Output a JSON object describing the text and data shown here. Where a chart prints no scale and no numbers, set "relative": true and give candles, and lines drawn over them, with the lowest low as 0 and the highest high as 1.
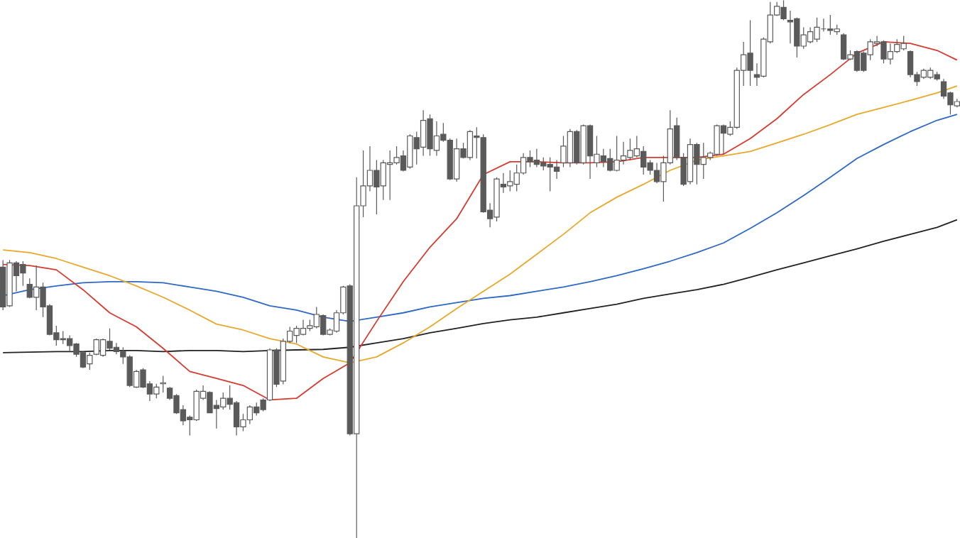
{
  "chart_data": {
    "type": "candlestick",
    "relative": true,
    "color": "#5a5a5a",
    "categories": [
      null,
      null,
      null,
      null,
      null,
      null,
      null,
      null,
      null,
      null,
      null,
      null,
      null,
      null,
      null,
      null,
      null,
      null,
      null,
      null,
      null,
      null,
      null,
      null,
      null,
      null,
      null,
      null,
      null,
      null,
      null,
      null,
      null,
      null,
      null,
      null,
      null,
      null,
      null,
      null,
      null,
      null,
      null,
      null,
      null,
      null,
      null,
      null,
      null,
      null,
      null,
      null,
      null,
      null,
      null,
      null,
      null,
      null,
      null,
      null,
      null,
      null,
      null,
      null,
      null,
      null,
      null,
      null,
      null,
      null,
      null,
      null,
      null,
      null,
      null,
      null,
      null,
      null,
      null,
      null,
      null,
      null,
      null,
      null,
      null,
      null,
      null,
      null,
      null,
      null,
      null,
      null,
      null,
      null,
      null,
      null,
      null,
      null,
      null,
      null,
      null,
      null,
      null,
      null,
      null,
      null,
      null,
      null,
      null,
      null,
      null,
      null,
      null,
      null,
      null,
      null,
      null,
      null,
      null,
      null,
      null,
      null,
      null,
      null,
      null,
      null,
      null,
      null,
      null,
      null,
      null,
      null,
      null,
      null,
      null,
      null,
      null,
      null,
      null,
      null,
      null,
      null,
      null,
      null
    ],
    "ohlc": [
      [
        0.504,
        0.517,
        0.424,
        0.43
      ],
      [
        0.432,
        0.517,
        0.43,
        0.512
      ],
      [
        0.512,
        0.515,
        0.459,
        0.488
      ],
      [
        0.509,
        0.515,
        0.469,
        0.493
      ],
      [
        0.472,
        0.483,
        0.446,
        0.448
      ],
      [
        0.448,
        0.507,
        0.424,
        0.467
      ],
      [
        0.467,
        0.475,
        0.411,
        0.43
      ],
      [
        0.432,
        0.435,
        0.377,
        0.379
      ],
      [
        0.382,
        0.395,
        0.358,
        0.369
      ],
      [
        0.371,
        0.385,
        0.361,
        0.369
      ],
      [
        0.371,
        0.377,
        0.347,
        0.358
      ],
      [
        0.361,
        0.363,
        0.337,
        0.342
      ],
      [
        0.345,
        0.347,
        0.316,
        0.318
      ],
      [
        0.324,
        0.345,
        0.313,
        0.34
      ],
      [
        0.342,
        0.371,
        0.34,
        0.369
      ],
      [
        0.34,
        0.371,
        0.337,
        0.369
      ],
      [
        0.366,
        0.39,
        0.35,
        0.353
      ],
      [
        0.355,
        0.363,
        0.342,
        0.347
      ],
      [
        0.347,
        0.355,
        0.324,
        0.337
      ],
      [
        0.337,
        0.34,
        0.281,
        0.284
      ],
      [
        0.281,
        0.313,
        0.279,
        0.31
      ],
      [
        0.313,
        0.316,
        0.279,
        0.281
      ],
      [
        0.287,
        0.292,
        0.255,
        0.268
      ],
      [
        0.268,
        0.287,
        0.26,
        0.281
      ],
      [
        0.287,
        0.302,
        0.271,
        0.289
      ],
      [
        0.279,
        0.281,
        0.257,
        0.26
      ],
      [
        0.265,
        0.268,
        0.231,
        0.233
      ],
      [
        0.239,
        0.247,
        0.21,
        0.218
      ],
      [
        0.225,
        0.228,
        0.191,
        0.22
      ],
      [
        0.22,
        0.276,
        0.218,
        0.273
      ],
      [
        0.26,
        0.284,
        0.257,
        0.273
      ],
      [
        0.271,
        0.273,
        0.233,
        0.233
      ],
      [
        0.247,
        0.257,
        0.204,
        0.241
      ],
      [
        0.244,
        0.271,
        0.239,
        0.26
      ],
      [
        0.26,
        0.284,
        0.239,
        0.249
      ],
      [
        0.252,
        0.255,
        0.191,
        0.207
      ],
      [
        0.207,
        0.231,
        0.199,
        0.22
      ],
      [
        0.22,
        0.247,
        0.212,
        0.244
      ],
      [
        0.244,
        0.252,
        0.228,
        0.233
      ],
      [
        0.257,
        0.26,
        0.236,
        0.239
      ],
      [
        0.257,
        0.353,
        0.255,
        0.35
      ],
      [
        0.35,
        0.353,
        0.281,
        0.286
      ],
      [
        0.292,
        0.371,
        0.286,
        0.366
      ],
      [
        0.366,
        0.393,
        0.363,
        0.385
      ],
      [
        0.377,
        0.395,
        0.363,
        0.39
      ],
      [
        0.379,
        0.406,
        0.377,
        0.39
      ],
      [
        0.39,
        0.406,
        0.385,
        0.395
      ],
      [
        0.393,
        0.43,
        0.39,
        0.416
      ],
      [
        0.414,
        0.416,
        0.377,
        0.379
      ],
      [
        0.379,
        0.39,
        0.377,
        0.387
      ],
      [
        0.385,
        0.424,
        0.382,
        0.419
      ],
      [
        0.419,
        0.469,
        0.416,
        0.467
      ],
      [
        0.469,
        0.472,
        0.191,
        0.194
      ],
      [
        0.194,
        0.671,
        0,
        0.618
      ],
      [
        0.618,
        0.721,
        0.597,
        0.655
      ],
      [
        0.655,
        0.729,
        0.645,
        0.684
      ],
      [
        0.684,
        0.703,
        0.602,
        0.653
      ],
      [
        0.655,
        0.703,
        0.629,
        0.698
      ],
      [
        0.695,
        0.721,
        0.629,
        0.698
      ],
      [
        0.698,
        0.729,
        0.695,
        0.708
      ],
      [
        0.711,
        0.721,
        0.682,
        0.684
      ],
      [
        0.69,
        0.751,
        0.687,
        0.748
      ],
      [
        0.745,
        0.756,
        0.695,
        0.724
      ],
      [
        0.727,
        0.796,
        0.711,
        0.777
      ],
      [
        0.78,
        0.788,
        0.711,
        0.724
      ],
      [
        0.721,
        0.775,
        0.711,
        0.748
      ],
      [
        0.751,
        0.772,
        0.737,
        0.74
      ],
      [
        0.74,
        0.743,
        0.666,
        0.668
      ],
      [
        0.668,
        0.743,
        0.663,
        0.724
      ],
      [
        0.724,
        0.735,
        0.706,
        0.708
      ],
      [
        0.708,
        0.759,
        0.703,
        0.756
      ],
      [
        0.748,
        0.764,
        0.706,
        0.745
      ],
      [
        0.745,
        0.751,
        0.605,
        0.607
      ],
      [
        0.61,
        0.623,
        0.578,
        0.594
      ],
      [
        0.597,
        0.671,
        0.589,
        0.668
      ],
      [
        0.658,
        0.679,
        0.642,
        0.653
      ],
      [
        0.655,
        0.684,
        0.645,
        0.663
      ],
      [
        0.658,
        0.695,
        0.645,
        0.679
      ],
      [
        0.679,
        0.716,
        0.676,
        0.708
      ],
      [
        0.708,
        0.721,
        0.69,
        0.7
      ],
      [
        0.703,
        0.724,
        0.69,
        0.695
      ],
      [
        0.698,
        0.708,
        0.684,
        0.692
      ],
      [
        0.695,
        0.708,
        0.645,
        0.69
      ],
      [
        0.69,
        0.703,
        0.668,
        0.682
      ],
      [
        0.698,
        0.748,
        0.69,
        0.729
      ],
      [
        0.698,
        0.761,
        0.69,
        0.756
      ],
      [
        0.756,
        0.759,
        0.695,
        0.698
      ],
      [
        0.698,
        0.769,
        0.695,
        0.767
      ],
      [
        0.767,
        0.769,
        0.668,
        0.711
      ],
      [
        0.698,
        0.748,
        0.69,
        0.714
      ],
      [
        0.711,
        0.724,
        0.69,
        0.7
      ],
      [
        0.706,
        0.724,
        0.682,
        0.684
      ],
      [
        0.684,
        0.748,
        0.682,
        0.703
      ],
      [
        0.703,
        0.737,
        0.695,
        0.711
      ],
      [
        0.708,
        0.743,
        0.703,
        0.721
      ],
      [
        0.711,
        0.748,
        0.708,
        0.724
      ],
      [
        0.719,
        0.729,
        0.676,
        0.69
      ],
      [
        0.698,
        0.703,
        0.676,
        0.684
      ],
      [
        0.684,
        0.698,
        0.66,
        0.663
      ],
      [
        0.663,
        0.711,
        0.626,
        0.698
      ],
      [
        0.698,
        0.796,
        0.695,
        0.761
      ],
      [
        0.767,
        0.782,
        0.703,
        0.708
      ],
      [
        0.708,
        0.716,
        0.655,
        0.658
      ],
      [
        0.663,
        0.743,
        0.658,
        0.732
      ],
      [
        0.732,
        0.735,
        0.658,
        0.695
      ],
      [
        0.695,
        0.735,
        0.668,
        0.708
      ],
      [
        0.708,
        0.719,
        0.703,
        0.716
      ],
      [
        0.714,
        0.769,
        0.711,
        0.767
      ],
      [
        0.767,
        0.769,
        0.714,
        0.753
      ],
      [
        0.751,
        0.775,
        0.748,
        0.764
      ],
      [
        0.764,
        0.875,
        0.761,
        0.87
      ],
      [
        0.87,
        0.923,
        0.841,
        0.899
      ],
      [
        0.902,
        0.963,
        0.841,
        0.87
      ],
      [
        0.862,
        0.883,
        0.841,
        0.857
      ],
      [
        0.859,
        0.931,
        0.857,
        0.928
      ],
      [
        0.923,
        0.997,
        0.92,
        0.973
      ],
      [
        0.973,
        0.997,
        0.971,
        0.989
      ],
      [
        0.987,
        1,
        0.963,
        0.966
      ],
      [
        0.963,
        0.981,
        0.92,
        0.96
      ],
      [
        0.966,
        0.968,
        0.894,
        0.915
      ],
      [
        0.915,
        0.95,
        0.91,
        0.936
      ],
      [
        0.923,
        0.95,
        0.92,
        0.942
      ],
      [
        0.928,
        0.968,
        0.923,
        0.95
      ],
      [
        0.947,
        0.966,
        0.942,
        0.947
      ],
      [
        0.947,
        0.973,
        0.936,
        0.944
      ],
      [
        0.942,
        0.955,
        0.936,
        0.947
      ],
      [
        0.936,
        0.939,
        0.889,
        0.891
      ],
      [
        0.891,
        0.907,
        0.889,
        0.899
      ],
      [
        0.905,
        0.907,
        0.867,
        0.87
      ],
      [
        0.902,
        0.905,
        0.867,
        0.87
      ],
      [
        0.899,
        0.928,
        0.889,
        0.923
      ],
      [
        0.92,
        0.934,
        0.915,
        0.923
      ],
      [
        0.923,
        0.926,
        0.883,
        0.891
      ],
      [
        0.891,
        0.92,
        0.881,
        0.905
      ],
      [
        0.905,
        0.928,
        0.902,
        0.918
      ],
      [
        0.91,
        0.934,
        0.907,
        0.92
      ],
      [
        0.905,
        0.907,
        0.857,
        0.862
      ],
      [
        0.862,
        0.867,
        0.841,
        0.849
      ],
      [
        0.857,
        0.873,
        0.854,
        0.87
      ],
      [
        0.857,
        0.875,
        0.854,
        0.87
      ],
      [
        0.862,
        0.867,
        0.851,
        0.854
      ],
      [
        0.849,
        0.854,
        0.817,
        0.822
      ],
      [
        0.828,
        0.83,
        0.788,
        0.806
      ],
      [
        0.804,
        0.817,
        0.801,
        0.812
      ]
    ],
    "series": [
      {
        "type": "line",
        "color": "#222222",
        "values": [
          0.345,
          null,
          null,
          null,
          0.346,
          null,
          null,
          null,
          0.347,
          null,
          null,
          null,
          0.347,
          null,
          null,
          null,
          0.349,
          null,
          null,
          null,
          0.349,
          null,
          null,
          null,
          0.347,
          null,
          null,
          null,
          0.349,
          null,
          null,
          null,
          0.349,
          null,
          null,
          null,
          0.347,
          null,
          null,
          null,
          0.349,
          null,
          null,
          null,
          0.35,
          null,
          null,
          null,
          0.351,
          null,
          null,
          null,
          0.355,
          null,
          null,
          null,
          0.363,
          null,
          null,
          null,
          0.371,
          null,
          null,
          null,
          0.382,
          null,
          null,
          null,
          0.39,
          null,
          null,
          null,
          0.399,
          null,
          null,
          null,
          0.406,
          null,
          null,
          null,
          0.411,
          null,
          null,
          null,
          0.419,
          null,
          null,
          null,
          0.427,
          null,
          null,
          null,
          0.435,
          null,
          null,
          null,
          0.446,
          null,
          null,
          null,
          0.454,
          null,
          null,
          null,
          0.462,
          null,
          null,
          null,
          0.472,
          null,
          null,
          null,
          0.485,
          null,
          null,
          null,
          0.499,
          null,
          null,
          null,
          0.512,
          null,
          null,
          null,
          0.525,
          null,
          null,
          null,
          0.538,
          null,
          null,
          null,
          0.552,
          null,
          null,
          null,
          0.565,
          null,
          null,
          null,
          0.578,
          null,
          null,
          0.592
        ]
      },
      {
        "type": "line",
        "color": "#2e68c8",
        "values": [
          0.451,
          null,
          null,
          null,
          0.462,
          null,
          null,
          null,
          0.469,
          null,
          null,
          null,
          0.475,
          null,
          null,
          null,
          0.477,
          null,
          null,
          null,
          0.477,
          null,
          null,
          null,
          0.475,
          null,
          null,
          null,
          0.467,
          null,
          null,
          null,
          0.459,
          null,
          null,
          null,
          0.448,
          null,
          null,
          null,
          0.432,
          null,
          null,
          null,
          0.424,
          null,
          null,
          null,
          0.411,
          null,
          null,
          null,
          0.403,
          null,
          null,
          null,
          0.411,
          null,
          null,
          null,
          0.419,
          null,
          null,
          null,
          0.43,
          null,
          null,
          null,
          0.438,
          null,
          null,
          null,
          0.446,
          null,
          null,
          null,
          0.451,
          null,
          null,
          null,
          0.459,
          null,
          null,
          null,
          0.467,
          null,
          null,
          null,
          0.477,
          null,
          null,
          null,
          0.488,
          null,
          null,
          null,
          0.501,
          null,
          null,
          null,
          0.515,
          null,
          null,
          null,
          0.531,
          null,
          null,
          null,
          0.549,
          null,
          null,
          null,
          0.576,
          null,
          null,
          null,
          0.605,
          null,
          null,
          null,
          0.637,
          null,
          null,
          null,
          0.671,
          null,
          null,
          null,
          0.706,
          null,
          null,
          null,
          0.732,
          null,
          null,
          null,
          0.756,
          null,
          null,
          null,
          0.777,
          null,
          null,
          0.788
        ]
      },
      {
        "type": "line",
        "color": "#e8a82a",
        "values": [
          0.536,
          null,
          null,
          null,
          0.531,
          null,
          null,
          null,
          0.52,
          null,
          null,
          null,
          0.504,
          null,
          null,
          null,
          0.488,
          null,
          null,
          null,
          0.469,
          null,
          null,
          null,
          0.448,
          null,
          null,
          null,
          0.424,
          null,
          null,
          null,
          0.398,
          null,
          null,
          null,
          0.387,
          null,
          null,
          null,
          0.371,
          null,
          null,
          null,
          0.361,
          null,
          null,
          null,
          0.337,
          null,
          null,
          null,
          0.326,
          null,
          null,
          null,
          0.337,
          null,
          null,
          null,
          0.363,
          null,
          null,
          null,
          0.393,
          null,
          null,
          null,
          0.427,
          null,
          null,
          null,
          0.459,
          null,
          null,
          null,
          0.491,
          null,
          null,
          null,
          0.528,
          null,
          null,
          null,
          0.565,
          null,
          null,
          null,
          0.605,
          null,
          null,
          null,
          0.634,
          null,
          null,
          null,
          0.658,
          null,
          null,
          null,
          0.684,
          null,
          null,
          null,
          0.703,
          null,
          null,
          null,
          0.711,
          null,
          null,
          null,
          0.719,
          null,
          null,
          null,
          0.735,
          null,
          null,
          null,
          0.751,
          null,
          null,
          null,
          0.769,
          null,
          null,
          null,
          0.788,
          null,
          null,
          null,
          0.801,
          null,
          null,
          null,
          0.814,
          null,
          null,
          null,
          0.828,
          null,
          null,
          0.841
        ]
      },
      {
        "type": "line",
        "color": "#d83a2e",
        "values": [
          0.509,
          null,
          null,
          null,
          0.507,
          null,
          null,
          null,
          0.499,
          null,
          null,
          null,
          0.462,
          null,
          null,
          null,
          0.419,
          null,
          null,
          null,
          0.393,
          null,
          null,
          null,
          0.353,
          null,
          null,
          null,
          0.31,
          null,
          null,
          null,
          0.297,
          null,
          null,
          null,
          0.284,
          null,
          null,
          null,
          0.257,
          null,
          null,
          null,
          0.26,
          null,
          null,
          null,
          0.297,
          null,
          null,
          null,
          0.326,
          null,
          null,
          null,
          0.403,
          null,
          null,
          null,
          0.477,
          null,
          null,
          null,
          0.541,
          null,
          null,
          null,
          0.594,
          null,
          null,
          null,
          0.676,
          null,
          null,
          null,
          0.7,
          null,
          null,
          null,
          0.7,
          null,
          null,
          null,
          0.698,
          null,
          null,
          null,
          0.698,
          null,
          null,
          null,
          0.7,
          null,
          null,
          null,
          0.708,
          null,
          null,
          null,
          0.708,
          null,
          null,
          null,
          0.708,
          null,
          null,
          null,
          0.714,
          null,
          null,
          null,
          0.743,
          null,
          null,
          null,
          0.78,
          null,
          null,
          null,
          0.825,
          null,
          null,
          null,
          0.862,
          null,
          null,
          null,
          0.902,
          null,
          null,
          null,
          0.923,
          null,
          null,
          null,
          0.92,
          null,
          null,
          null,
          0.907,
          null,
          null,
          0.889
        ]
      }
    ]
  }
}
